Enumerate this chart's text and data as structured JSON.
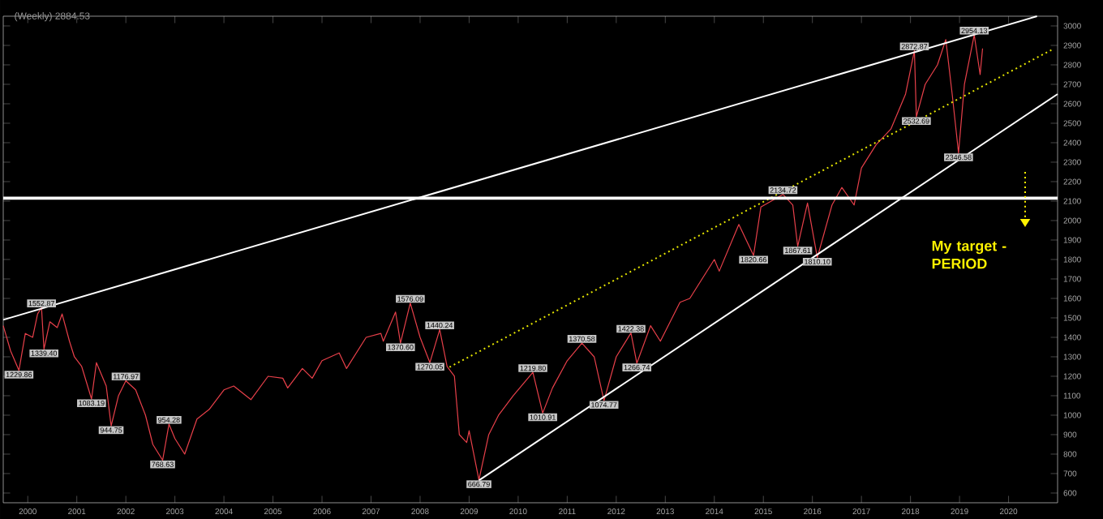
{
  "chart_data": {
    "type": "line",
    "title": "(Weekly) 2884.53",
    "xlim": [
      1999.5,
      2021
    ],
    "ylim": [
      550,
      3050
    ],
    "xticks": [
      2000,
      2001,
      2002,
      2003,
      2004,
      2005,
      2006,
      2007,
      2008,
      2009,
      2010,
      2011,
      2012,
      2013,
      2014,
      2015,
      2016,
      2017,
      2018,
      2019,
      2020
    ],
    "yticks": [
      600,
      700,
      800,
      900,
      1000,
      1100,
      1200,
      1300,
      1400,
      1500,
      1600,
      1700,
      1800,
      1900,
      2000,
      2100,
      2200,
      2300,
      2400,
      2500,
      2600,
      2700,
      2800,
      2900,
      3000
    ],
    "grid": false,
    "series": [
      {
        "color": "#e8404a",
        "x": [
          1999.5,
          1999.65,
          1999.82,
          1999.95,
          2000.1,
          2000.2,
          2000.28,
          2000.33,
          2000.45,
          2000.6,
          2000.7,
          2000.85,
          2000.95,
          2001.1,
          2001.3,
          2001.4,
          2001.6,
          2001.7,
          2001.85,
          2002.0,
          2002.2,
          2002.4,
          2002.55,
          2002.75,
          2002.88,
          2003.0,
          2003.2,
          2003.45,
          2003.7,
          2004.0,
          2004.2,
          2004.55,
          2004.9,
          2005.2,
          2005.3,
          2005.6,
          2005.8,
          2006.0,
          2006.35,
          2006.5,
          2006.9,
          2007.2,
          2007.25,
          2007.5,
          2007.6,
          2007.8,
          2008.0,
          2008.2,
          2008.4,
          2008.55,
          2008.7,
          2008.8,
          2008.95,
          2009.0,
          2009.2,
          2009.4,
          2009.6,
          2009.9,
          2010.3,
          2010.5,
          2010.7,
          2011.0,
          2011.3,
          2011.55,
          2011.75,
          2012.0,
          2012.3,
          2012.42,
          2012.7,
          2012.9,
          2013.3,
          2013.5,
          2013.7,
          2014.0,
          2014.1,
          2014.5,
          2014.8,
          2014.95,
          2015.4,
          2015.6,
          2015.7,
          2015.9,
          2016.1,
          2016.4,
          2016.6,
          2016.85,
          2017.0,
          2017.3,
          2017.6,
          2017.9,
          2018.08,
          2018.12,
          2018.3,
          2018.55,
          2018.72,
          2018.85,
          2018.98,
          2019.1,
          2019.3,
          2019.42,
          2019.47
        ],
        "values": [
          1460,
          1330,
          1229.86,
          1420,
          1400,
          1520,
          1552.87,
          1339.4,
          1480,
          1450,
          1520,
          1380,
          1300,
          1250,
          1083.19,
          1270,
          1150,
          944.75,
          1100,
          1176.97,
          1130,
          1000,
          850,
          768.63,
          954.28,
          880,
          800,
          980,
          1030,
          1130,
          1150,
          1080,
          1200,
          1190,
          1140,
          1240,
          1190,
          1280,
          1320,
          1240,
          1400,
          1420,
          1380,
          1530,
          1370.6,
          1576.09,
          1400,
          1270.05,
          1440.24,
          1250,
          1200,
          900,
          860,
          920,
          666.79,
          900,
          1000,
          1100,
          1219.8,
          1010.91,
          1140,
          1280,
          1370.58,
          1300,
          1074.77,
          1300,
          1422.38,
          1266.74,
          1460,
          1380,
          1580,
          1600,
          1680,
          1800,
          1740,
          1980,
          1820.66,
          2070,
          2134.72,
          2080,
          1867.61,
          2090,
          1810.1,
          2080,
          2170,
          2080,
          2270,
          2390,
          2470,
          2650,
          2872.87,
          2532.69,
          2700,
          2800,
          2930,
          2650,
          2346.58,
          2700,
          2954.13,
          2750,
          2884.53
        ]
      },
      {
        "color": "#ffffff",
        "x": [
          1999.5,
          2020.58
        ],
        "values": [
          1490,
          3050
        ]
      },
      {
        "color": "#e6e600",
        "line_style": "dotted",
        "x": [
          2008.6,
          2020.9
        ],
        "values": [
          1247,
          2880
        ]
      },
      {
        "color": "#ffffff",
        "x": [
          2009.2,
          2021
        ],
        "values": [
          665,
          2650
        ]
      }
    ],
    "ref_lines": [
      {
        "axis": "y",
        "value": 2115,
        "color": "#ffffff"
      }
    ],
    "annotations": [
      {
        "text": "1229.86",
        "x": 1999.82,
        "y": 1229.86
      },
      {
        "text": "1552.87",
        "x": 2000.28,
        "y": 1552.87
      },
      {
        "text": "1339.40",
        "x": 2000.33,
        "y": 1339.4
      },
      {
        "text": "1083.19",
        "x": 2001.3,
        "y": 1083.19
      },
      {
        "text": "944.75",
        "x": 2001.7,
        "y": 944.75
      },
      {
        "text": "1176.97",
        "x": 2002.0,
        "y": 1176.97
      },
      {
        "text": "768.63",
        "x": 2002.75,
        "y": 768.63
      },
      {
        "text": "954.28",
        "x": 2002.88,
        "y": 954.28
      },
      {
        "text": "1370.60",
        "x": 2007.6,
        "y": 1370.6
      },
      {
        "text": "1576.09",
        "x": 2007.8,
        "y": 1576.09
      },
      {
        "text": "1270.05",
        "x": 2008.2,
        "y": 1270.05
      },
      {
        "text": "1440.24",
        "x": 2008.4,
        "y": 1440.24
      },
      {
        "text": "666.79",
        "x": 2009.2,
        "y": 666.79
      },
      {
        "text": "1219.80",
        "x": 2010.3,
        "y": 1219.8
      },
      {
        "text": "1010.91",
        "x": 2010.5,
        "y": 1010.91
      },
      {
        "text": "1370.58",
        "x": 2011.3,
        "y": 1370.58
      },
      {
        "text": "1074.77",
        "x": 2011.75,
        "y": 1074.77
      },
      {
        "text": "1422.38",
        "x": 2012.3,
        "y": 1422.38
      },
      {
        "text": "1266.74",
        "x": 2012.42,
        "y": 1266.74
      },
      {
        "text": "1820.66",
        "x": 2014.8,
        "y": 1820.66
      },
      {
        "text": "2134.72",
        "x": 2015.4,
        "y": 2134.72
      },
      {
        "text": "1867.61",
        "x": 2015.7,
        "y": 1867.61
      },
      {
        "text": "1810.10",
        "x": 2016.1,
        "y": 1810.1
      },
      {
        "text": "2872.87",
        "x": 2018.08,
        "y": 2872.87
      },
      {
        "text": "2532.69",
        "x": 2018.12,
        "y": 2532.69
      },
      {
        "text": "2346.58",
        "x": 2018.98,
        "y": 2346.58
      },
      {
        "text": "2954.13",
        "x": 2019.3,
        "y": 2954.13
      },
      "My target - PERIOD"
    ]
  }
}
